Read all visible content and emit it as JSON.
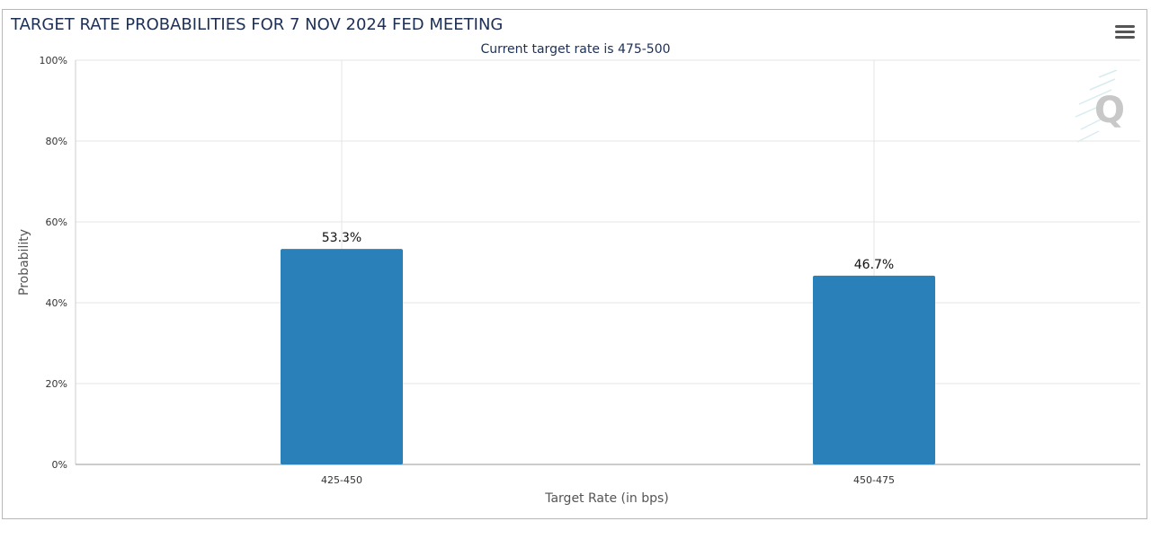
{
  "title": "TARGET RATE PROBABILITIES FOR 7 NOV 2024 FED MEETING",
  "subtitle": "Current target rate is 475-500",
  "menu_icon": "hamburger-menu-icon",
  "logo_icon": "q-logo-icon",
  "colors": {
    "bar": "#2a80b9",
    "title": "#1d2f55",
    "grid": "#e6e6e6"
  },
  "chart_data": {
    "type": "bar",
    "title": "TARGET RATE PROBABILITIES FOR 7 NOV 2024 FED MEETING",
    "subtitle": "Current target rate is 475-500",
    "categories": [
      "425-450",
      "450-475"
    ],
    "values": [
      53.3,
      46.7
    ],
    "data_labels": [
      "53.3%",
      "46.7%"
    ],
    "xlabel": "Target Rate (in bps)",
    "ylabel": "Probability",
    "ylim": [
      0,
      100
    ],
    "yticks": [
      0,
      20,
      40,
      60,
      80,
      100
    ],
    "ytick_labels": [
      "0%",
      "20%",
      "40%",
      "60%",
      "80%",
      "100%"
    ],
    "grid": true,
    "legend": "none"
  }
}
